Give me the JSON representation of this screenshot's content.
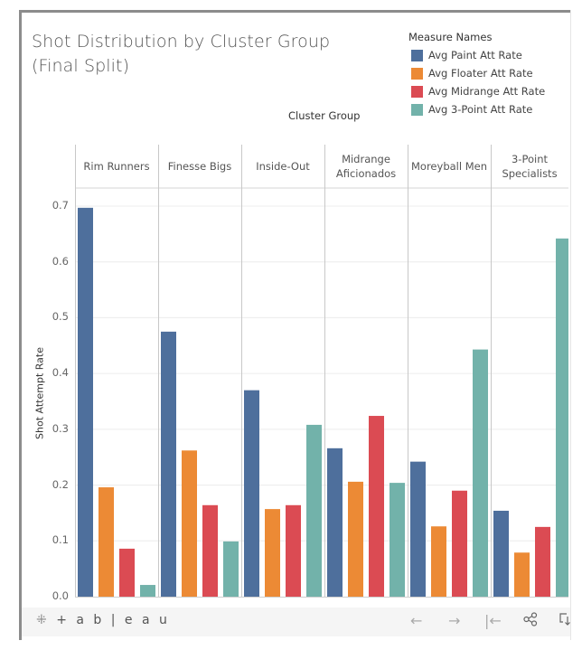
{
  "title_line1": "Shot Distribution by Cluster Group",
  "title_line2": "(Final Split)",
  "legend": {
    "title": "Measure Names",
    "items": [
      {
        "label": "Avg Paint Att Rate",
        "color": "#4e6f9c"
      },
      {
        "label": "Avg Floater Att Rate",
        "color": "#ec8a35"
      },
      {
        "label": "Avg Midrange Att Rate",
        "color": "#db4b53"
      },
      {
        "label": "Avg 3-Point Att Rate",
        "color": "#72b2aa"
      }
    ]
  },
  "toolbar": {
    "logo": "+ a b | e a u",
    "back_icon": "←",
    "forward_icon": "→",
    "reset_icon": "|←",
    "share_icon": "share",
    "download_icon": "download"
  },
  "chart_data": {
    "type": "bar",
    "title": "Shot Distribution by Cluster Group (Final Split)",
    "column_header": "Cluster Group",
    "xlabel": "",
    "ylabel": "Shot Attempt Rate",
    "ylim": [
      0,
      0.7
    ],
    "yticks": [
      "0.0",
      "0.1",
      "0.2",
      "0.3",
      "0.4",
      "0.5",
      "0.6",
      "0.7"
    ],
    "grid": true,
    "legend_position": "top-right",
    "categories": [
      [
        "Rim Runners"
      ],
      [
        "Finesse Bigs"
      ],
      [
        "Inside-Out"
      ],
      [
        "Midrange",
        "Aficionados"
      ],
      [
        "Moreyball Men"
      ],
      [
        "3-Point",
        "Specialists"
      ]
    ],
    "category_names": [
      "Rim Runners",
      "Finesse Bigs",
      "Inside-Out",
      "Midrange Aficionados",
      "Moreyball Men",
      "3-Point Specialists"
    ],
    "series": [
      {
        "name": "Avg Paint Att Rate",
        "values": [
          0.697,
          0.475,
          0.37,
          0.266,
          0.242,
          0.154
        ]
      },
      {
        "name": "Avg Floater Att Rate",
        "values": [
          0.196,
          0.262,
          0.157,
          0.206,
          0.126,
          0.079
        ]
      },
      {
        "name": "Avg Midrange Att Rate",
        "values": [
          0.086,
          0.164,
          0.164,
          0.324,
          0.19,
          0.125
        ]
      },
      {
        "name": "Avg 3-Point Att Rate",
        "values": [
          0.021,
          0.099,
          0.308,
          0.204,
          0.443,
          0.642
        ]
      }
    ]
  }
}
